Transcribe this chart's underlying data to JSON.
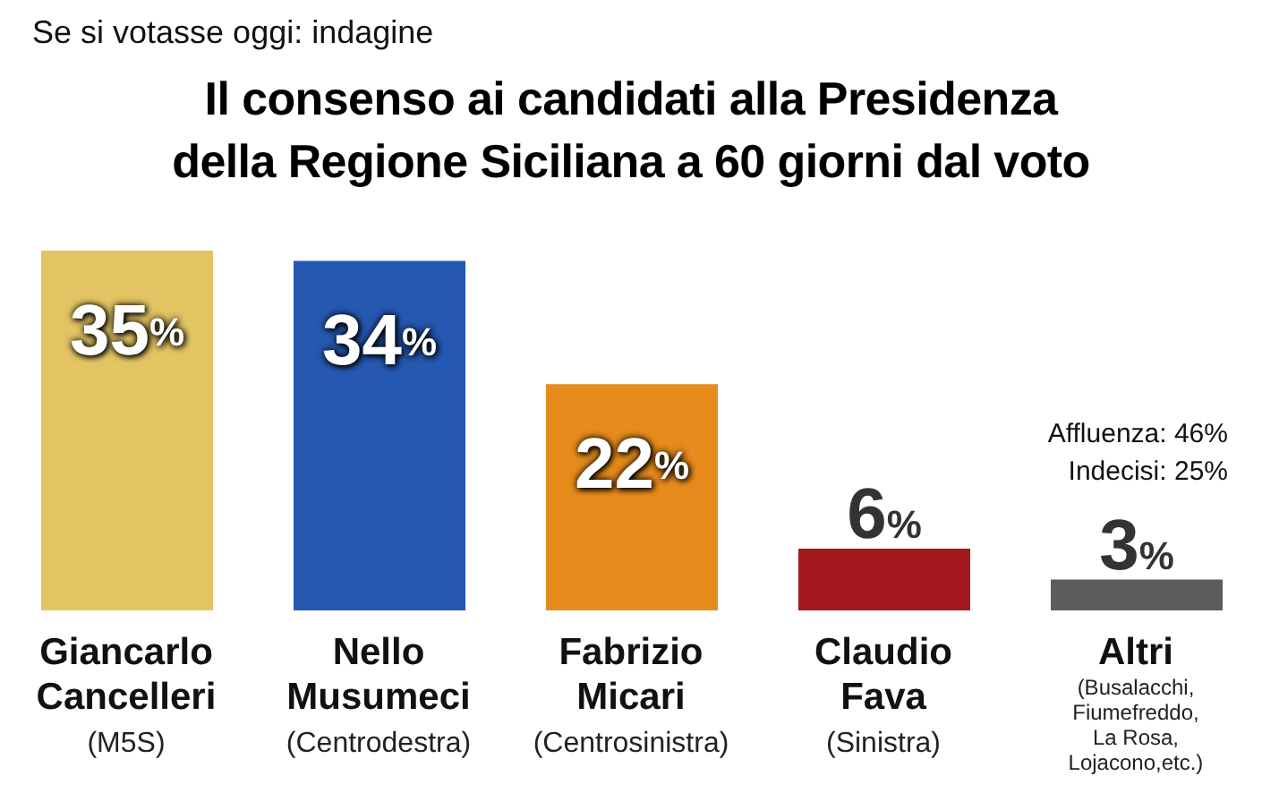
{
  "chart_data": {
    "type": "bar",
    "subtitle": "Se si votasse oggi: indagine",
    "title": "Il consenso ai candidati alla Presidenza\ndella Regione Siciliana a 60 giorni dal voto",
    "categories": [
      "Giancarlo Cancelleri (M5S)",
      "Nello Musumeci (Centrodestra)",
      "Fabrizio Micari (Centrosinistra)",
      "Claudio Fava (Sinistra)",
      "Altri (Busalacchi, Fiumefreddo, La Rosa, Lojacono,etc.)"
    ],
    "values": [
      35,
      34,
      22,
      6,
      3
    ],
    "colors": [
      "#e2c463",
      "#2558b0",
      "#e68b1c",
      "#a3191d",
      "#5c5c5c"
    ],
    "value_labels": [
      "35%",
      "34%",
      "22%",
      "6%",
      "3%"
    ],
    "annotations": [
      "Affluenza: 46%",
      "Indecisi: 25%"
    ]
  }
}
